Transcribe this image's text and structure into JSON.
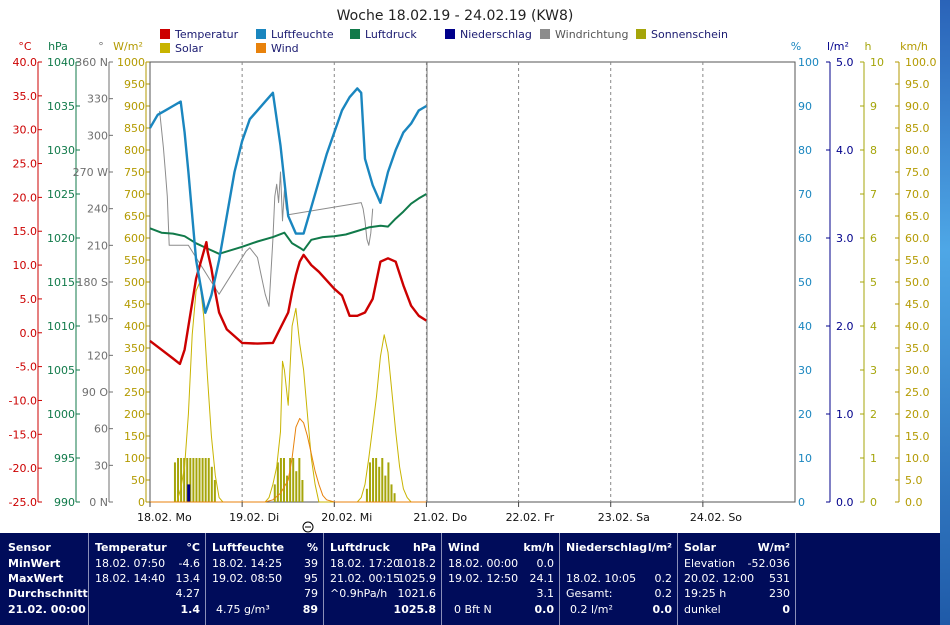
{
  "title": "Woche 18.02.19 - 24.02.19 (KW8)",
  "legend": [
    {
      "label": "Temperatur",
      "color": "#cc0000"
    },
    {
      "label": "Luftfeuchte",
      "color": "#1a86bf"
    },
    {
      "label": "Luftdruck",
      "color": "#117a4a"
    },
    {
      "label": "Niederschlag",
      "color": "#00008b"
    },
    {
      "label": "Windrichtung",
      "color": "#8c8c8c"
    },
    {
      "label": "Sonnenschein",
      "color": "#a5a50a"
    },
    {
      "label": "Solar",
      "color": "#c8b400"
    },
    {
      "label": "Wind",
      "color": "#e8820c"
    }
  ],
  "axes": {
    "temp": {
      "unit": "°C",
      "color": "#cc0000",
      "ticks": [
        "40.0",
        "35.0",
        "30.0",
        "25.0",
        "20.0",
        "15.0",
        "10.0",
        "5.0",
        "0.0",
        "-5.0",
        "-10.0",
        "-15.0",
        "-20.0",
        "-25.0"
      ]
    },
    "press": {
      "unit": "hPa",
      "color": "#117a4a",
      "ticks": [
        "1040",
        "1035",
        "1030",
        "1025",
        "1020",
        "1015",
        "1010",
        "1005",
        "1000",
        "995",
        "990"
      ]
    },
    "winddir": {
      "unit": "°",
      "color": "#707070",
      "ticks": [
        "360 N",
        "330",
        "300",
        "270 W",
        "240",
        "210",
        "180 S",
        "150",
        "120",
        "90 O",
        "60",
        "30",
        "0 N"
      ]
    },
    "solar": {
      "unit": "W/m²",
      "color": "#b39a00",
      "ticks": [
        "1000",
        "950",
        "900",
        "850",
        "800",
        "750",
        "700",
        "650",
        "600",
        "550",
        "500",
        "450",
        "400",
        "350",
        "300",
        "250",
        "200",
        "150",
        "100",
        "50",
        "0"
      ]
    },
    "hum": {
      "unit": "%",
      "color": "#1a86bf",
      "ticks": [
        "100",
        "90",
        "80",
        "70",
        "60",
        "50",
        "40",
        "30",
        "20",
        "10",
        "0"
      ]
    },
    "rain": {
      "unit": "l/m²",
      "color": "#00008b",
      "ticks": [
        "5.0",
        "4.0",
        "3.0",
        "2.0",
        "1.0",
        "0.0"
      ]
    },
    "sun": {
      "unit": "h",
      "color": "#a5a50a",
      "ticks": [
        "10",
        "9",
        "8",
        "7",
        "6",
        "5",
        "4",
        "3",
        "2",
        "1",
        "0"
      ]
    },
    "wind": {
      "unit": "km/h",
      "color": "#b39a00",
      "ticks": [
        "100.0",
        "95.0",
        "90.0",
        "85.0",
        "80.0",
        "75.0",
        "70.0",
        "65.0",
        "60.0",
        "55.0",
        "50.0",
        "45.0",
        "40.0",
        "35.0",
        "30.0",
        "25.0",
        "20.0",
        "15.0",
        "10.0",
        "5.0",
        "0.0"
      ]
    }
  },
  "x_ticks": [
    "18.02.  Mo",
    "19.02.  Di",
    "20.02.  Mi",
    "21.02.  Do",
    "22.02.  Fr",
    "23.02.  Sa",
    "24.02.  So"
  ],
  "chart_data": {
    "type": "line",
    "x_unit": "hours since 18.02. 00:00",
    "xlim": [
      0,
      168
    ],
    "series": [
      {
        "name": "Temperatur",
        "axis": "temp",
        "color": "#cc0000",
        "x": [
          0,
          3,
          6,
          7.8,
          9,
          12,
          14.7,
          15,
          16,
          17,
          18,
          20,
          24,
          28,
          32,
          36,
          37,
          38,
          39,
          40,
          42,
          44,
          48,
          50,
          52,
          54,
          56,
          58,
          60,
          62,
          64,
          66,
          68,
          70,
          72
        ],
        "y": [
          -1.2,
          -2.5,
          -3.8,
          -4.6,
          -2.5,
          8,
          13.4,
          12,
          9.5,
          6,
          3,
          0.5,
          -1.5,
          -1.6,
          -1.5,
          3,
          6,
          8.5,
          10.5,
          11.5,
          10,
          9,
          6.5,
          5.5,
          2.5,
          2.5,
          3,
          5,
          10.5,
          11,
          10.5,
          7,
          4,
          2.5,
          1.8
        ]
      },
      {
        "name": "Luftfeuchte",
        "axis": "hum",
        "color": "#1a86bf",
        "x": [
          0,
          2,
          4,
          6,
          8,
          9,
          10,
          12,
          14.4,
          16,
          18,
          20,
          22,
          24,
          26,
          28,
          30,
          32,
          34,
          36,
          38,
          40,
          42,
          44,
          46,
          48,
          50,
          52,
          54,
          55,
          56,
          58,
          60,
          62,
          64,
          66,
          68,
          70,
          72
        ],
        "y": [
          85,
          88,
          89,
          90,
          91,
          84,
          75,
          55,
          43,
          47,
          55,
          65,
          75,
          82,
          87,
          89,
          91,
          93,
          81,
          65,
          61,
          61,
          67,
          73,
          79,
          84,
          89,
          92,
          94,
          93,
          78,
          72,
          68,
          75,
          80,
          84,
          86,
          89,
          90
        ]
      },
      {
        "name": "Luftdruck",
        "axis": "press",
        "color": "#117a4a",
        "x": [
          0,
          3,
          6,
          9,
          12,
          15,
          18,
          21,
          24,
          28,
          32,
          35,
          37,
          39,
          40,
          42,
          45,
          48,
          51,
          54,
          57,
          60,
          62,
          64,
          66,
          68,
          70,
          72
        ],
        "y": [
          1021.1,
          1020.6,
          1020.5,
          1020.2,
          1019.4,
          1018.8,
          1018.2,
          1018.6,
          1019.0,
          1019.6,
          1020.1,
          1020.6,
          1019.4,
          1018.9,
          1018.6,
          1019.8,
          1020.1,
          1020.2,
          1020.4,
          1020.8,
          1021.2,
          1021.4,
          1021.3,
          1022.2,
          1023.0,
          1023.9,
          1024.5,
          1025.0
        ]
      },
      {
        "name": "Solar",
        "axis": "solar",
        "color": "#c8b400",
        "x": [
          0,
          6,
          7,
          8,
          9,
          10,
          11,
          12,
          13,
          14,
          15,
          16,
          17,
          18,
          19,
          24,
          30,
          31,
          32,
          33,
          34,
          34.5,
          35,
          36,
          37,
          38,
          39,
          40,
          41,
          42,
          43,
          44,
          48,
          54,
          55,
          56,
          57,
          58,
          59,
          60,
          61,
          62,
          63,
          64,
          65,
          66,
          67,
          68,
          72
        ],
        "y": [
          0,
          0,
          0,
          30,
          80,
          200,
          380,
          480,
          500,
          420,
          280,
          150,
          60,
          10,
          0,
          0,
          0,
          10,
          40,
          80,
          160,
          320,
          300,
          220,
          400,
          440,
          360,
          300,
          200,
          100,
          40,
          0,
          0,
          0,
          10,
          40,
          100,
          170,
          240,
          330,
          380,
          340,
          250,
          160,
          80,
          30,
          10,
          0,
          0
        ]
      },
      {
        "name": "Wind",
        "axis": "wind",
        "color": "#e8820c",
        "x": [
          0,
          30,
          32,
          34,
          35,
          36,
          37,
          38,
          39,
          40,
          41,
          42,
          43,
          44,
          45,
          46,
          48,
          60,
          72
        ],
        "y": [
          0,
          0,
          0.5,
          2,
          3.5,
          5,
          10,
          17,
          19,
          18,
          15,
          11,
          7,
          4,
          1.5,
          0.5,
          0,
          0,
          0
        ]
      },
      {
        "name": "Windrichtung",
        "axis": "winddir",
        "color": "#8c8c8c",
        "x": [
          2.5,
          3,
          3.5,
          4,
          4.5,
          5,
          6,
          8,
          9,
          10,
          11,
          12,
          13,
          14,
          15,
          16,
          17,
          18,
          25,
          26,
          28,
          29,
          30,
          31,
          32,
          32.5,
          33,
          33.5,
          34,
          34.5,
          35,
          35.5,
          36,
          55,
          55.5,
          56,
          56.5,
          57,
          57.5,
          58
        ],
        "y": [
          320,
          305,
          290,
          270,
          250,
          210,
          210,
          210,
          210,
          210,
          205,
          200,
          195,
          190,
          185,
          180,
          175,
          170,
          205,
          208,
          200,
          185,
          170,
          160,
          215,
          250,
          260,
          245,
          270,
          230,
          255,
          240,
          235,
          245,
          240,
          230,
          215,
          210,
          220,
          240
        ]
      }
    ],
    "bars": [
      {
        "name": "Sonnenschein",
        "axis": "sun",
        "color": "#a5a50a",
        "x": [
          6.5,
          7.3,
          8.1,
          8.9,
          9.7,
          10.5,
          11.3,
          12.1,
          12.9,
          13.7,
          14.5,
          15.3,
          16.1,
          16.9,
          32.5,
          33.3,
          34.1,
          34.9,
          35.7,
          36.5,
          37.3,
          38.1,
          38.9,
          39.7,
          56.5,
          57.3,
          58.1,
          58.9,
          59.7,
          60.5,
          61.3,
          62.1,
          62.9,
          63.7
        ],
        "y": [
          0.9,
          1,
          1,
          1,
          1,
          1,
          1,
          1,
          1,
          1,
          1,
          1,
          0.8,
          0.5,
          0.4,
          0.9,
          1,
          1,
          0.6,
          1,
          1,
          0.7,
          1,
          0.5,
          0.3,
          0.9,
          1,
          1,
          0.8,
          1,
          0.6,
          0.9,
          0.4,
          0.2
        ]
      },
      {
        "name": "Niederschlag",
        "axis": "rain",
        "color": "#00008b",
        "x": [
          10.08
        ],
        "y": [
          0.2
        ]
      }
    ]
  },
  "panel": {
    "sensor": {
      "head": "Sensor",
      "rows": [
        "MinWert",
        "MaxWert",
        "Durchschnitt",
        "21.02.  00:00"
      ]
    },
    "temperatur": {
      "head": "Temperatur",
      "unit": "°C",
      "rows": [
        [
          "18.02.  07:50",
          "-4.6"
        ],
        [
          "18.02.  14:40",
          "13.4"
        ],
        [
          "",
          "4.27"
        ],
        [
          "",
          "1.4"
        ]
      ]
    },
    "luftfeuchte": {
      "head": "Luftfeuchte",
      "unit": "%",
      "rows": [
        [
          "18.02.  14:25",
          "39"
        ],
        [
          "19.02.  08:50",
          "95"
        ],
        [
          "",
          "79"
        ],
        [
          "4.75 g/m³",
          "89"
        ]
      ]
    },
    "luftdruck": {
      "head": "Luftdruck",
      "unit": "hPa",
      "rows": [
        [
          "18.02.  17:20",
          "1018.2"
        ],
        [
          "21.02.  00:15",
          "1025.9"
        ],
        [
          "^0.9hPa/h",
          "1021.6"
        ],
        [
          "",
          "1025.8"
        ]
      ]
    },
    "wind": {
      "head": "Wind",
      "unit": "km/h",
      "rows": [
        [
          "18.02.  00:00",
          "0.0"
        ],
        [
          "19.02.  12:50",
          "24.1"
        ],
        [
          "",
          "3.1"
        ],
        [
          "0 Bft N",
          "0.0"
        ]
      ]
    },
    "niederschlag": {
      "head": "Niederschlag",
      "unit": "l/m²",
      "rows": [
        [
          "",
          ""
        ],
        [
          "18.02.  10:05",
          "0.2"
        ],
        [
          "Gesamt:",
          "0.2"
        ],
        [
          "0.2 l/m²",
          "0.0"
        ]
      ]
    },
    "solar": {
      "head": "Solar",
      "unit": "W/m²",
      "rows": [
        [
          "Elevation",
          "-52.036"
        ],
        [
          "20.02.  12:00",
          "531"
        ],
        [
          "19:25 h",
          "230"
        ],
        [
          "dunkel",
          "0"
        ]
      ]
    }
  }
}
